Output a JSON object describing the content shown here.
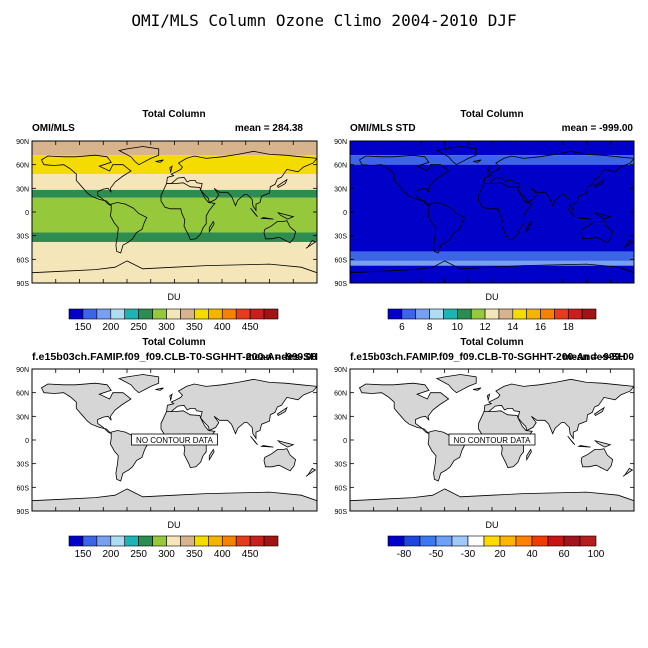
{
  "figure": {
    "title": "OMI/MLS Column Ozone Climo 2004-2010 DJF"
  },
  "colors": {
    "ozone_palette": [
      "#0000c8",
      "#3c64e6",
      "#78a0f0",
      "#afdcf0",
      "#1eb4b4",
      "#2d8c50",
      "#96c83c",
      "#f5e6b9",
      "#d7b48c",
      "#f5dc00",
      "#f5b400",
      "#f58200",
      "#e63c1e",
      "#c81e1e",
      "#a01414"
    ],
    "std_palette": [
      "#0000c8",
      "#3c64e6",
      "#78a0f0",
      "#afdcf0",
      "#1eb4b4",
      "#2d8c50",
      "#96c83c",
      "#f5e6b9",
      "#d7b48c",
      "#f5dc00",
      "#f5b400",
      "#f58200",
      "#e63c1e",
      "#c81e1e",
      "#a01414"
    ],
    "diff_palette": [
      "#0000c8",
      "#1e46dc",
      "#3c78f0",
      "#6ea0f5",
      "#a0c8fa",
      "#ffffff",
      "#ffdc00",
      "#ffb400",
      "#ff8200",
      "#f03c00",
      "#c81414",
      "#a0141e",
      "#b41e1e"
    ],
    "land": "#d6d6d6",
    "no_data_box": "#ffffff"
  },
  "chart_data": [
    {
      "type": "heatmap",
      "title": "Total Column",
      "left_label": "OMI/MLS",
      "right_label": "mean = 284.38",
      "colorbar_label": "DU",
      "colorbar_ticks": [
        "150",
        "200",
        "250",
        "300",
        "350",
        "400",
        "450"
      ],
      "y_ticks": [
        "90N",
        "60N",
        "30N",
        "0",
        "30S",
        "60S",
        "90S"
      ],
      "ylim": [
        -90,
        90
      ],
      "lat_bands": [
        {
          "lat_top": 90,
          "lat_bot": 72,
          "level": 8
        },
        {
          "lat_top": 72,
          "lat_bot": 48,
          "level": 9
        },
        {
          "lat_top": 48,
          "lat_bot": 28,
          "level": 7
        },
        {
          "lat_top": 28,
          "lat_bot": 18,
          "level": 5
        },
        {
          "lat_top": 18,
          "lat_bot": -26,
          "level": 6
        },
        {
          "lat_top": -26,
          "lat_bot": -38,
          "level": 5
        },
        {
          "lat_top": -38,
          "lat_bot": -66,
          "level": 7
        },
        {
          "lat_top": -66,
          "lat_bot": -90,
          "level": 7
        }
      ]
    },
    {
      "type": "heatmap",
      "title": "Total Column",
      "left_label": "OMI/MLS STD",
      "right_label": "mean = -999.00",
      "colorbar_label": "DU",
      "colorbar_ticks": [
        "6",
        "8",
        "10",
        "12",
        "14",
        "16",
        "18"
      ],
      "y_ticks": [
        "90N",
        "60N",
        "30N",
        "0",
        "30S",
        "60S",
        "90S"
      ],
      "ylim": [
        -90,
        90
      ],
      "lat_bands": [
        {
          "lat_top": 90,
          "lat_bot": 72,
          "level": 0
        },
        {
          "lat_top": 72,
          "lat_bot": 60,
          "level": 1
        },
        {
          "lat_top": 60,
          "lat_bot": -50,
          "level": 0
        },
        {
          "lat_top": -50,
          "lat_bot": -62,
          "level": 1
        },
        {
          "lat_top": -62,
          "lat_bot": -68,
          "level": 2
        },
        {
          "lat_top": -68,
          "lat_bot": -90,
          "level": 0
        }
      ]
    },
    {
      "type": "heatmap",
      "title": "Total Column",
      "left_label": "f.e15b03ch.FAMIP.f09_f09.CLB-T0-SGHHT-200-Andes-SH",
      "right_label": "mean = -999.00",
      "no_data_text": "NO CONTOUR DATA",
      "colorbar_label": "DU",
      "colorbar_ticks": [
        "150",
        "200",
        "250",
        "300",
        "350",
        "400",
        "450"
      ],
      "y_ticks": [
        "90N",
        "60N",
        "30N",
        "0",
        "30S",
        "60S",
        "90S"
      ],
      "ylim": [
        -90,
        90
      ]
    },
    {
      "type": "heatmap",
      "title": "Total Column",
      "left_label": "f.e15b03ch.FAMIP.f09_f09.CLB-T0-SGHHT-200-Andes-SH -",
      "right_label": "mean = -999.00",
      "no_data_text": "NO CONTOUR DATA",
      "colorbar_label": "DU",
      "colorbar_ticks": [
        "-80",
        "-50",
        "-30",
        "20",
        "40",
        "60",
        "100"
      ],
      "y_ticks": [
        "90N",
        "60N",
        "30N",
        "0",
        "30S",
        "60S",
        "90S"
      ],
      "ylim": [
        -90,
        90
      ]
    }
  ]
}
